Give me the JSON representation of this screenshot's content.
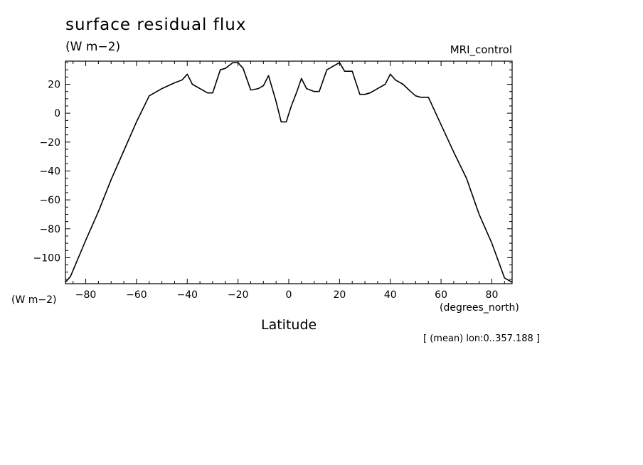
{
  "chart_data": {
    "type": "line",
    "title": "surface residual flux",
    "units": "(W m−2)",
    "dataset": "MRI_control",
    "xlabel": "Latitude",
    "xunits": "(degrees_north)",
    "ylabel": "(W m−2)",
    "note": "[ (mean) lon:0..357.188 ]",
    "xlim": [
      -88,
      88
    ],
    "ylim": [
      -118,
      36
    ],
    "xticks": [
      -80,
      -60,
      -40,
      -20,
      0,
      20,
      40,
      60,
      80
    ],
    "xticklabels": [
      "−80",
      "−60",
      "−40",
      "−20",
      "0",
      "20",
      "40",
      "60",
      "80"
    ],
    "yticks": [
      -100,
      -80,
      -60,
      -40,
      -20,
      0,
      20
    ],
    "yticklabels": [
      "−100",
      "−80",
      "−60",
      "−40",
      "−20",
      "0",
      "20"
    ],
    "grid": false,
    "series": [
      {
        "x": [
          -88,
          -86,
          -80,
          -75,
          -70,
          -65,
          -60,
          -55,
          -50,
          -45,
          -42,
          -40,
          -38,
          -35,
          -32,
          -30,
          -27,
          -25,
          -22,
          -20,
          -18,
          -15,
          -12,
          -10,
          -8,
          -5,
          -3,
          -1,
          1,
          3,
          5,
          7,
          10,
          12,
          15,
          18,
          20,
          22,
          25,
          28,
          30,
          32,
          35,
          38,
          40,
          42,
          45,
          48,
          50,
          52,
          55,
          60,
          65,
          70,
          75,
          80,
          85,
          88
        ],
        "y": [
          -117,
          -113,
          -88,
          -68,
          -46,
          -26,
          -6,
          12,
          17,
          21,
          23,
          27,
          20,
          17,
          14,
          14,
          30,
          31,
          35,
          35,
          31,
          16,
          17,
          19,
          26,
          8,
          -6,
          -6,
          5,
          14,
          24,
          17,
          15,
          15,
          30,
          33,
          35,
          29,
          29,
          13,
          13,
          14,
          17,
          20,
          27,
          23,
          20,
          15,
          12,
          11,
          11,
          -8,
          -27,
          -45,
          -70,
          -90,
          -114,
          -117
        ]
      }
    ]
  }
}
